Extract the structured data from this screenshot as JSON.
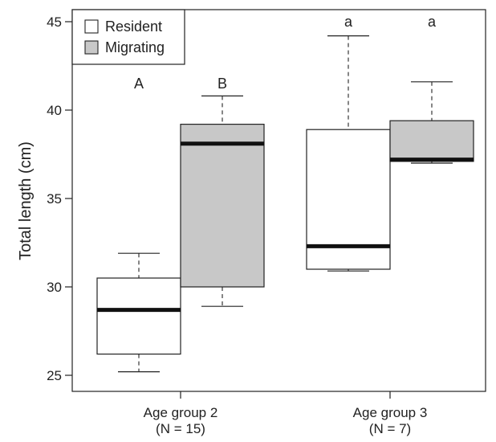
{
  "chart_data": {
    "type": "boxplot",
    "title": "",
    "xlabel": "",
    "ylabel": "Total length (cm)",
    "ylim": [
      23.5,
      46
    ],
    "yticks": [
      25,
      30,
      35,
      40,
      45
    ],
    "grid": false,
    "legend_position": "top-left",
    "categories": [
      {
        "name": "Age group 2",
        "n_label": "(N = 15)"
      },
      {
        "name": "Age group 3",
        "n_label": "(N = 7)"
      }
    ],
    "series": [
      {
        "name": "Resident",
        "color": "#ffffff"
      },
      {
        "name": "Migrating",
        "color": "#c8c8c8"
      }
    ],
    "boxes": [
      {
        "category": 0,
        "series": 0,
        "whisker_low": 25.2,
        "q1": 26.2,
        "median": 28.7,
        "q3": 30.5,
        "whisker_high": 31.9,
        "sig_label": "A"
      },
      {
        "category": 0,
        "series": 1,
        "whisker_low": 28.9,
        "q1": 30.0,
        "median": 38.1,
        "q3": 39.2,
        "whisker_high": 40.8,
        "sig_label": "B"
      },
      {
        "category": 1,
        "series": 0,
        "whisker_low": 30.9,
        "q1": 31.0,
        "median": 32.3,
        "q3": 38.9,
        "whisker_high": 44.2,
        "sig_label": "a"
      },
      {
        "category": 1,
        "series": 1,
        "whisker_low": 37.0,
        "q1": 37.1,
        "median": 37.2,
        "q3": 39.4,
        "whisker_high": 41.6,
        "sig_label": "a"
      }
    ]
  }
}
